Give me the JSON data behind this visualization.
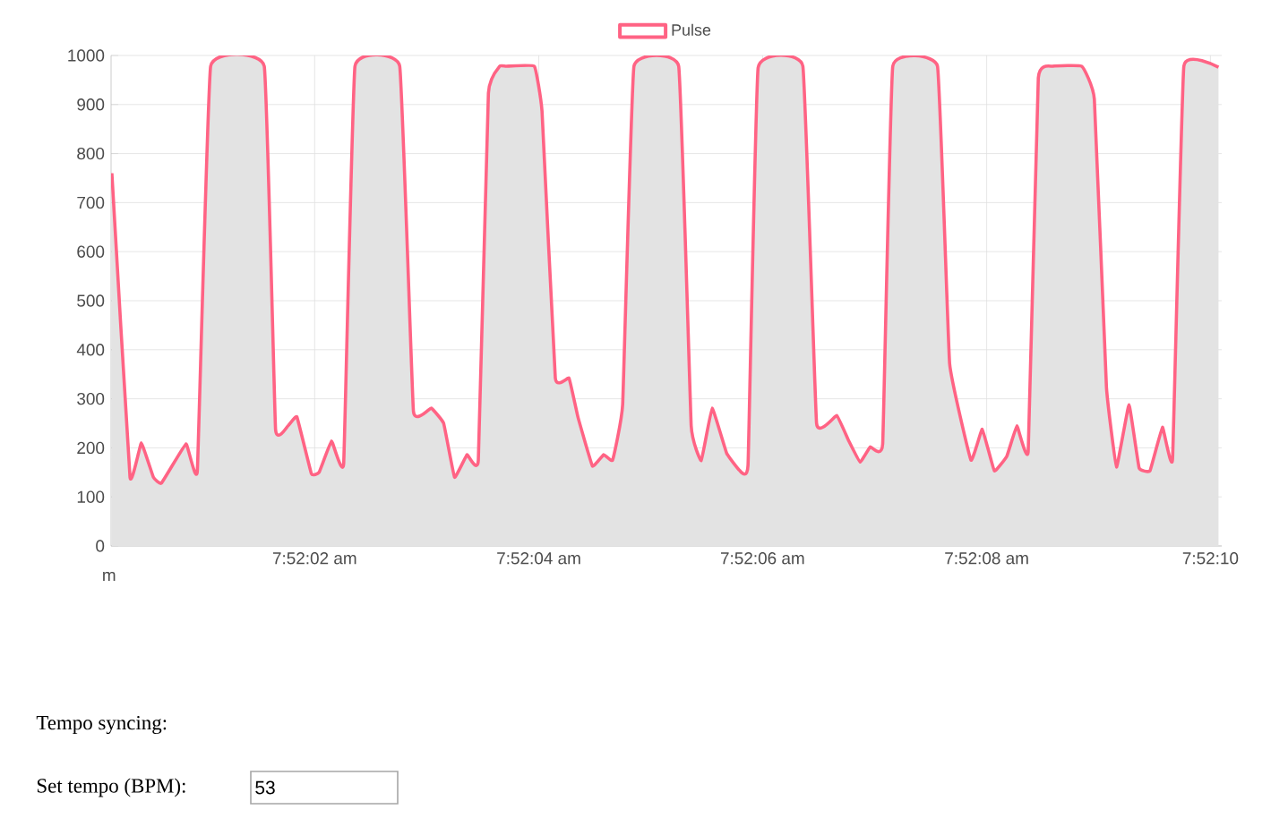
{
  "chart_data": {
    "type": "area",
    "x": [
      7.866719,
      7.866764,
      7.866792,
      7.866822,
      7.866842,
      7.866903,
      7.866931,
      7.866964,
      7.867097,
      7.867125,
      7.867156,
      7.867178,
      7.867214,
      7.867233,
      7.867264,
      7.867294,
      7.867322,
      7.867433,
      7.867467,
      7.867511,
      7.867542,
      7.867569,
      7.8676,
      7.867628,
      7.867653,
      7.867681,
      7.867697,
      7.867767,
      7.867786,
      7.867819,
      7.867853,
      7.867875,
      7.867911,
      7.867939,
      7.867961,
      7.867986,
      7.868014,
      7.868125,
      7.868156,
      7.868181,
      7.868208,
      7.868244,
      7.868275,
      7.868297,
      7.868322,
      7.868433,
      7.868467,
      7.868517,
      7.868547,
      7.868575,
      7.8686,
      7.868631,
      7.868656,
      7.868767,
      7.868797,
      7.86885,
      7.868878,
      7.868908,
      7.868939,
      7.868964,
      7.868992,
      7.869017,
      7.869053,
      7.869125,
      7.869156,
      7.869186,
      7.869211,
      7.869242,
      7.869267,
      7.869294,
      7.869325,
      7.86935,
      7.869378,
      7.869464
    ],
    "series": [
      {
        "name": "Pulse",
        "color": "#ff6384",
        "values": [
          760,
          140,
          210,
          140,
          128,
          208,
          153,
          978,
          978,
          238,
          245,
          263,
          147,
          150,
          214,
          168,
          978,
          978,
          275,
          281,
          250,
          140,
          186,
          175,
          923,
          978,
          978,
          978,
          886,
          342,
          342,
          263,
          163,
          186,
          175,
          288,
          978,
          978,
          245,
          174,
          281,
          189,
          155,
          165,
          975,
          978,
          250,
          266,
          214,
          171,
          202,
          208,
          978,
          978,
          372,
          175,
          238,
          153,
          183,
          245,
          193,
          954,
          978,
          978,
          911,
          324,
          161,
          288,
          159,
          153,
          242,
          177,
          978,
          976
        ]
      }
    ],
    "xlim": [
      7.866717,
      7.869472
    ],
    "xticks": [
      {
        "value": 7.867222,
        "label": "7:52:02 am"
      },
      {
        "value": 7.867778,
        "label": "7:52:04 am"
      },
      {
        "value": 7.868333,
        "label": "7:52:06 am"
      },
      {
        "value": 7.868889,
        "label": "7:52:08 am"
      },
      {
        "value": 7.869444,
        "label": "7:52:10"
      }
    ],
    "ylim": [
      0,
      1000
    ],
    "yticks": [
      0,
      100,
      200,
      300,
      400,
      500,
      600,
      700,
      800,
      900,
      1000
    ],
    "grid": true,
    "legend": "top",
    "annotations": [
      "m",
      "Tempo syncing:",
      "Set tempo (BPM):",
      "53"
    ]
  }
}
